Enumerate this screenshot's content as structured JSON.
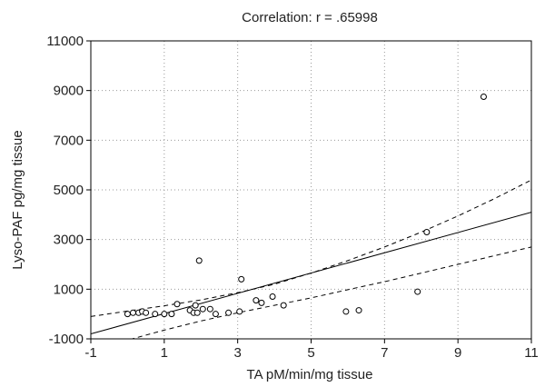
{
  "chart_data": {
    "type": "scatter",
    "title": "Correlation: r = .65998",
    "xlabel": "TA pM/min/mg tissue",
    "ylabel": "Lyso-PAF pg/mg tissue",
    "xlim": [
      -1,
      11
    ],
    "ylim": [
      -1000,
      11000
    ],
    "x_ticks": [
      -1,
      1,
      3,
      5,
      7,
      9,
      11
    ],
    "y_ticks": [
      -1000,
      1000,
      3000,
      5000,
      7000,
      9000,
      11000
    ],
    "x_tick_labels": [
      "-1",
      "1",
      "3",
      "5",
      "7",
      "9",
      "11"
    ],
    "y_tick_labels": [
      "-1000",
      "1000",
      "3000",
      "5000",
      "7000",
      "9000",
      "11000"
    ],
    "grid": true,
    "grid_style": "dotted",
    "points": [
      {
        "x": 0.0,
        "y": 0
      },
      {
        "x": 0.15,
        "y": 50
      },
      {
        "x": 0.3,
        "y": 50
      },
      {
        "x": 0.4,
        "y": 100
      },
      {
        "x": 0.5,
        "y": 50
      },
      {
        "x": 0.75,
        "y": 0
      },
      {
        "x": 1.0,
        "y": 0
      },
      {
        "x": 1.2,
        "y": 0
      },
      {
        "x": 1.35,
        "y": 400
      },
      {
        "x": 1.7,
        "y": 150
      },
      {
        "x": 1.8,
        "y": 50
      },
      {
        "x": 1.85,
        "y": 350
      },
      {
        "x": 1.9,
        "y": 50
      },
      {
        "x": 1.95,
        "y": 2150
      },
      {
        "x": 2.05,
        "y": 200
      },
      {
        "x": 2.25,
        "y": 200
      },
      {
        "x": 2.4,
        "y": 0
      },
      {
        "x": 2.75,
        "y": 50
      },
      {
        "x": 3.05,
        "y": 100
      },
      {
        "x": 3.1,
        "y": 1400
      },
      {
        "x": 3.5,
        "y": 550
      },
      {
        "x": 3.65,
        "y": 450
      },
      {
        "x": 3.95,
        "y": 700
      },
      {
        "x": 4.25,
        "y": 350
      },
      {
        "x": 5.95,
        "y": 100
      },
      {
        "x": 6.3,
        "y": 150
      },
      {
        "x": 7.9,
        "y": 900
      },
      {
        "x": 8.15,
        "y": 3300
      },
      {
        "x": 9.7,
        "y": 8750
      }
    ],
    "regression_line": {
      "x": [
        -1,
        11
      ],
      "y": [
        -800,
        4100
      ]
    },
    "confidence_upper": {
      "x": [
        -1,
        0,
        1,
        2,
        3,
        4,
        5,
        6,
        7,
        8,
        9,
        10,
        11
      ],
      "y": [
        -100,
        120,
        330,
        570,
        860,
        1200,
        1650,
        2150,
        2700,
        3300,
        3950,
        4650,
        5400
      ]
    },
    "confidence_lower": {
      "x": [
        -1,
        0,
        1,
        2,
        3,
        4,
        5,
        6,
        7,
        8,
        9,
        10,
        11
      ],
      "y": [
        -1500,
        -1050,
        -650,
        -280,
        50,
        350,
        650,
        980,
        1300,
        1650,
        2000,
        2350,
        2700
      ]
    }
  }
}
